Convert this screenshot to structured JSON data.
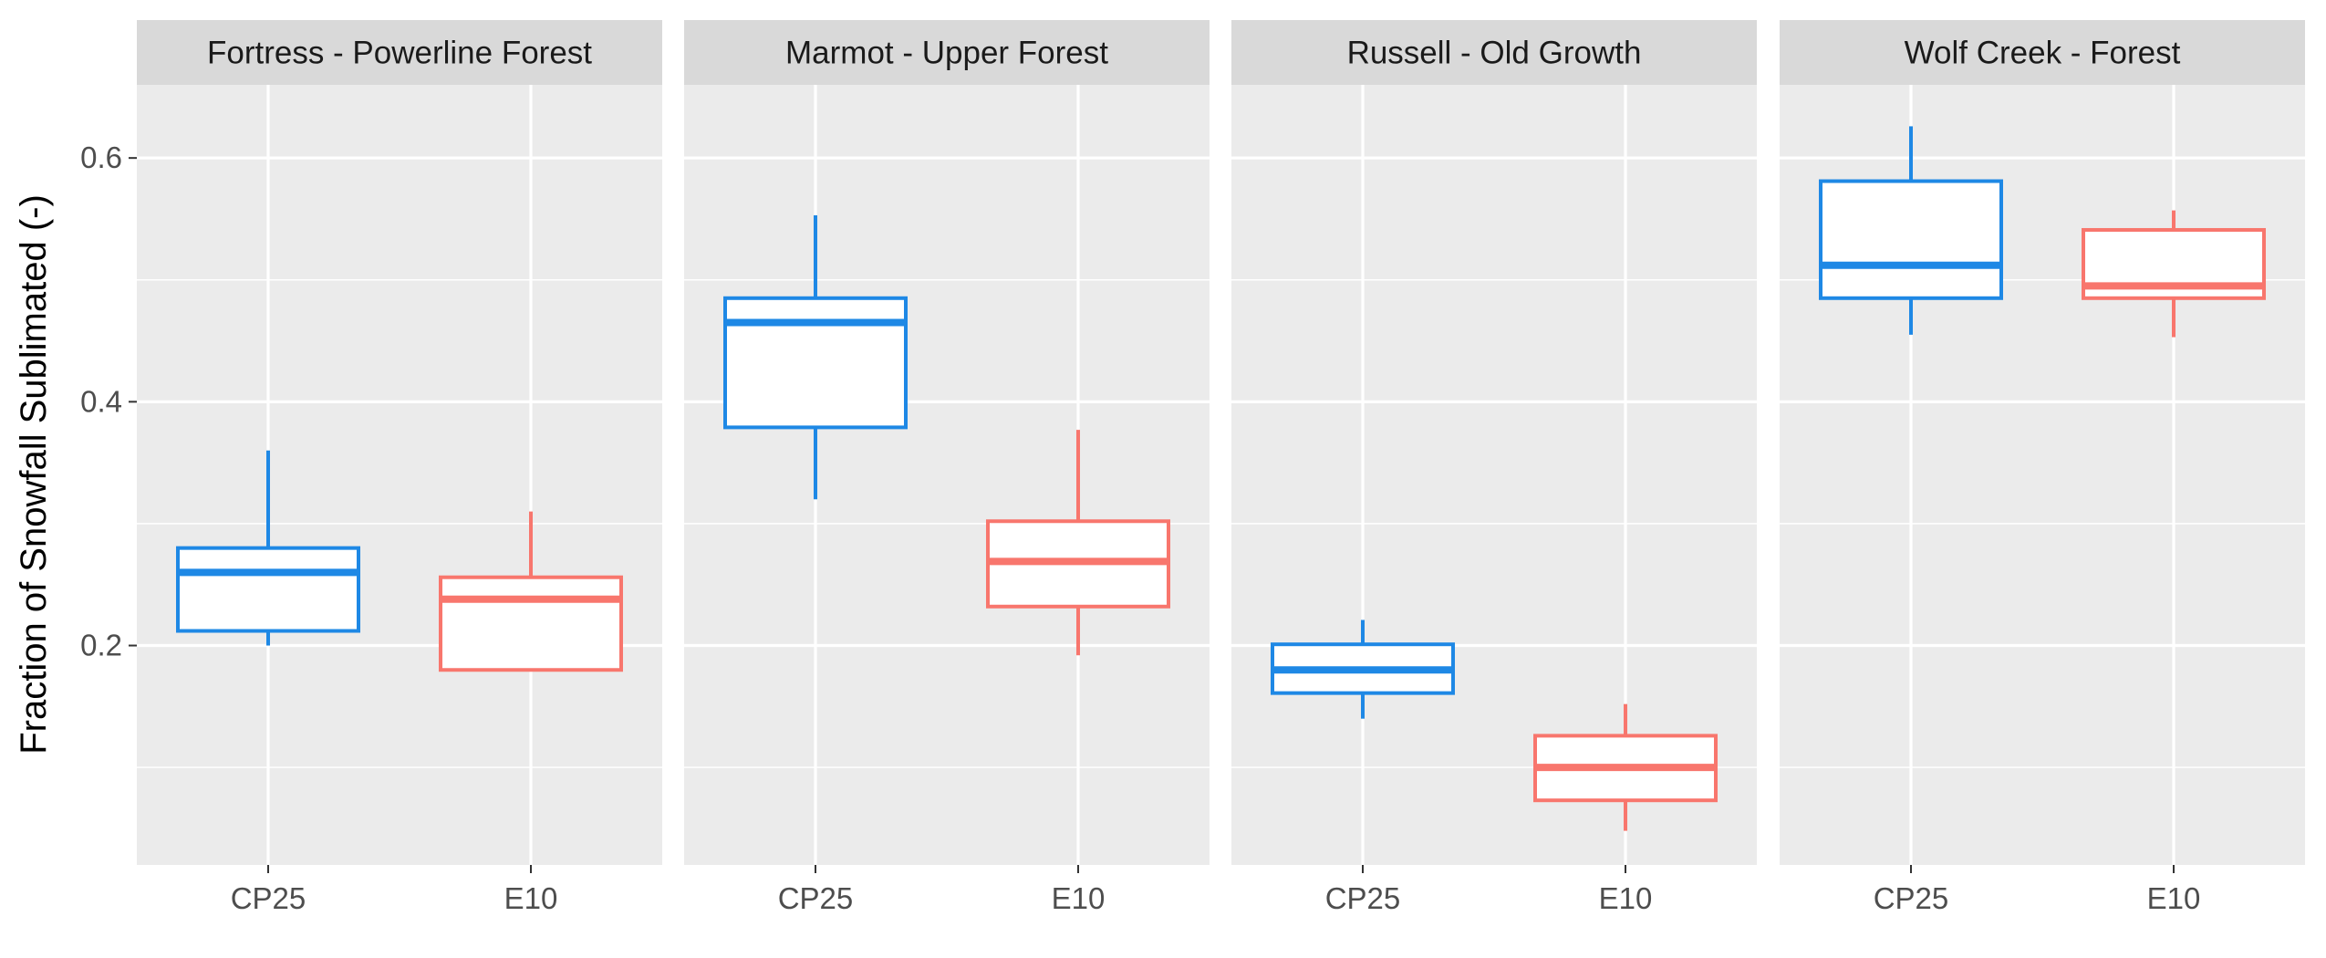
{
  "chart_data": {
    "type": "boxplot",
    "ylabel": "Fraction of Snowfall Sublimated (-)",
    "xlabel": "",
    "title": "",
    "ylim": [
      0.02,
      0.66
    ],
    "y_major_ticks": [
      0.2,
      0.4,
      0.6
    ],
    "y_tick_labels": [
      "0.2",
      "0.4",
      "0.6"
    ],
    "y_minor_ticks": [
      0.1,
      0.3,
      0.5
    ],
    "categories": [
      "CP25",
      "E10"
    ],
    "category_colors": {
      "CP25": "#1E88E5",
      "E10": "#F8766D"
    },
    "panel_background": "#EBEBEB",
    "strip_background": "#D9D9D9",
    "grid": true,
    "legend": "none",
    "panels": [
      {
        "title": "Fortress - Powerline Forest",
        "boxes": [
          {
            "category": "CP25",
            "min": 0.2,
            "q1": 0.212,
            "median": 0.26,
            "q3": 0.28,
            "max": 0.36
          },
          {
            "category": "E10",
            "min": 0.18,
            "q1": 0.18,
            "median": 0.238,
            "q3": 0.256,
            "max": 0.31
          }
        ]
      },
      {
        "title": "Marmot - Upper Forest",
        "boxes": [
          {
            "category": "CP25",
            "min": 0.32,
            "q1": 0.379,
            "median": 0.465,
            "q3": 0.485,
            "max": 0.553
          },
          {
            "category": "E10",
            "min": 0.192,
            "q1": 0.232,
            "median": 0.269,
            "q3": 0.302,
            "max": 0.377
          }
        ]
      },
      {
        "title": "Russell - Old Growth",
        "boxes": [
          {
            "category": "CP25",
            "min": 0.14,
            "q1": 0.161,
            "median": 0.18,
            "q3": 0.201,
            "max": 0.221
          },
          {
            "category": "E10",
            "min": 0.048,
            "q1": 0.073,
            "median": 0.1,
            "q3": 0.126,
            "max": 0.152
          }
        ]
      },
      {
        "title": "Wolf Creek - Forest",
        "boxes": [
          {
            "category": "CP25",
            "min": 0.455,
            "q1": 0.485,
            "median": 0.512,
            "q3": 0.581,
            "max": 0.626
          },
          {
            "category": "E10",
            "min": 0.453,
            "q1": 0.485,
            "median": 0.495,
            "q3": 0.541,
            "max": 0.557
          }
        ]
      }
    ]
  }
}
